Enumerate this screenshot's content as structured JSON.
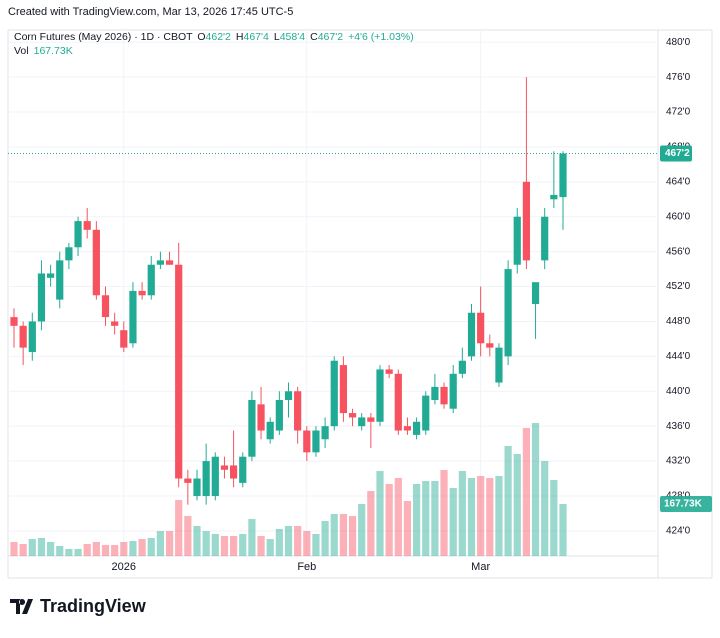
{
  "header": {
    "created": "Created with TradingView.com, Mar 13, 2026 17:45 UTC-5",
    "title": "Corn Futures (May 2026) · 1D · CBOT",
    "ohlc": [
      {
        "label": "O",
        "value": "462'2"
      },
      {
        "label": "H",
        "value": "467'4"
      },
      {
        "label": "L",
        "value": "458'4"
      },
      {
        "label": "C",
        "value": "467'2"
      }
    ],
    "change": "+4'6 (+1.03%)",
    "vol_label": "Vol",
    "logo": "TradingView"
  },
  "chart_data": {
    "type": "candlestick",
    "up_color": "#22ab94",
    "down_color": "#f7525f",
    "grid": true,
    "ylim": [
      418.6,
      481.4
    ],
    "yticks": [
      {
        "value": 424,
        "label": "424'0"
      },
      {
        "value": 428,
        "label": "428'0"
      },
      {
        "value": 432,
        "label": "432'0"
      },
      {
        "value": 436,
        "label": "436'0"
      },
      {
        "value": 440,
        "label": "440'0"
      },
      {
        "value": 444,
        "label": "444'0"
      },
      {
        "value": 448,
        "label": "448'0"
      },
      {
        "value": 452,
        "label": "452'0"
      },
      {
        "value": 456,
        "label": "456'0"
      },
      {
        "value": 460,
        "label": "460'0"
      },
      {
        "value": 464,
        "label": "464'0"
      },
      {
        "value": 468,
        "label": "468'0"
      },
      {
        "value": 472,
        "label": "472'0"
      },
      {
        "value": 476,
        "label": "476'0"
      },
      {
        "value": 480,
        "label": "480'0"
      }
    ],
    "xticks": [
      {
        "value": 12,
        "label": "2026"
      },
      {
        "value": 32,
        "label": "Feb"
      },
      {
        "value": 51,
        "label": "Mar"
      }
    ],
    "last_price": {
      "value": 467.25,
      "label": "467'2"
    },
    "open": [
      448.5,
      447.5,
      444.5,
      448,
      453,
      450.5,
      455,
      456.5,
      459.5,
      458.5,
      451,
      448,
      447,
      445.5,
      451.5,
      451,
      454.5,
      455,
      454.5,
      430,
      428,
      428,
      428,
      431.5,
      431.5,
      429.5,
      432.5,
      438.5,
      434.5,
      435.5,
      439,
      440,
      435.5,
      433,
      434.5,
      436,
      443,
      437.5,
      436,
      437,
      436.5,
      442.5,
      442,
      436,
      435,
      435.5,
      439,
      440.5,
      438,
      442,
      444,
      449,
      445.5,
      441,
      444,
      454.5,
      464,
      450,
      455,
      462,
      462.25
    ],
    "high": [
      449.5,
      448,
      449,
      455,
      454.5,
      456,
      457,
      460,
      461,
      459.5,
      452,
      449,
      448,
      452.5,
      452.5,
      455.5,
      456,
      456,
      457,
      431,
      431,
      434,
      433,
      432.5,
      435.5,
      433,
      440,
      440.5,
      437,
      440,
      441,
      440.5,
      436,
      436,
      437,
      444,
      444,
      438,
      437.5,
      437.5,
      443,
      443,
      442.5,
      437,
      437,
      440,
      442,
      441,
      443,
      445,
      450,
      452,
      446.5,
      445.5,
      455,
      461,
      476,
      452,
      461,
      467.5,
      467.5
    ],
    "low": [
      445,
      443,
      443.5,
      447,
      452,
      449.5,
      454,
      455.5,
      457.5,
      450.5,
      447.5,
      446.5,
      444.5,
      445,
      450.5,
      450.5,
      454,
      454.5,
      429,
      427,
      427.5,
      427,
      427.5,
      430,
      429,
      429,
      432,
      434.5,
      434,
      435,
      437,
      434,
      432,
      432.5,
      433.5,
      435.5,
      436.5,
      436,
      435.5,
      433.5,
      436,
      441.5,
      435,
      435,
      434.5,
      435,
      438.5,
      438,
      437.5,
      441.5,
      443.5,
      444,
      444,
      440.5,
      443,
      453.5,
      454,
      446,
      454,
      461,
      458.5
    ],
    "close": [
      447.5,
      445,
      448,
      453.5,
      453.5,
      455,
      456.5,
      459.5,
      458.5,
      451,
      448.5,
      447.5,
      445,
      451.5,
      451,
      454.5,
      455,
      454.5,
      430,
      429.5,
      430,
      432,
      432.5,
      431,
      430,
      432.5,
      439,
      435.5,
      436.5,
      439,
      440,
      435.5,
      433,
      435.5,
      436,
      443.5,
      437.5,
      437,
      437,
      436.5,
      442.5,
      442,
      435.5,
      435.5,
      436.5,
      439.5,
      440.5,
      438.5,
      442,
      443.5,
      449,
      445.5,
      445,
      445,
      454,
      460,
      455,
      452.5,
      460,
      462.5,
      467.25
    ],
    "volume": [
      45200,
      38700,
      54800,
      58100,
      45200,
      32300,
      22600,
      22600,
      38700,
      45200,
      35500,
      35500,
      45200,
      48400,
      54800,
      58100,
      80600,
      80600,
      180600,
      129000,
      96800,
      80600,
      71000,
      64500,
      64500,
      71000,
      119400,
      64500,
      54800,
      87100,
      96800,
      96800,
      80600,
      71000,
      112900,
      135500,
      135500,
      129000,
      167700,
      209700,
      274200,
      232300,
      251600,
      177400,
      232300,
      241900,
      241900,
      277400,
      219400,
      274200,
      251600,
      258100,
      251600,
      258100,
      354800,
      329000,
      412900,
      429000,
      306500,
      245200,
      167730
    ],
    "volume_last_label": "167.73K"
  }
}
